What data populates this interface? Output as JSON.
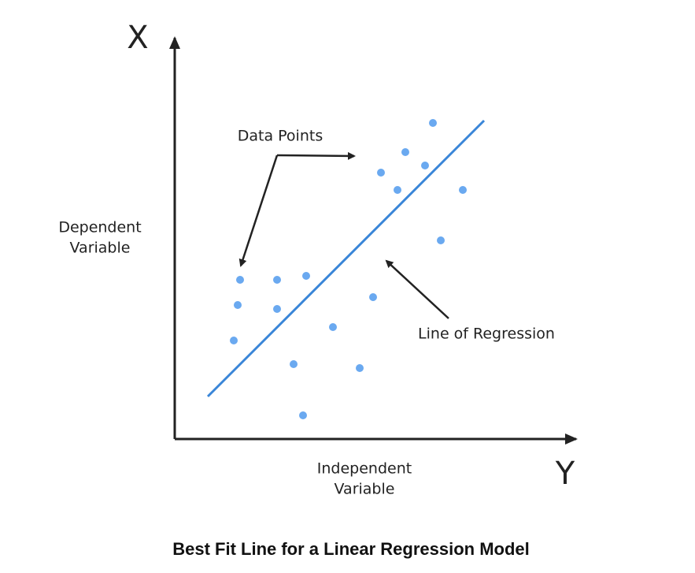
{
  "axes": {
    "vertical_letter": "X",
    "horizontal_letter": "Y",
    "vertical_label": [
      "Dependent",
      "Variable"
    ],
    "horizontal_label": [
      "Independent",
      "Variable"
    ]
  },
  "annotations": {
    "data_points": "Data Points",
    "line_of_regression": "Line of Regression"
  },
  "caption": "Best Fit Line for a Linear Regression Model"
}
